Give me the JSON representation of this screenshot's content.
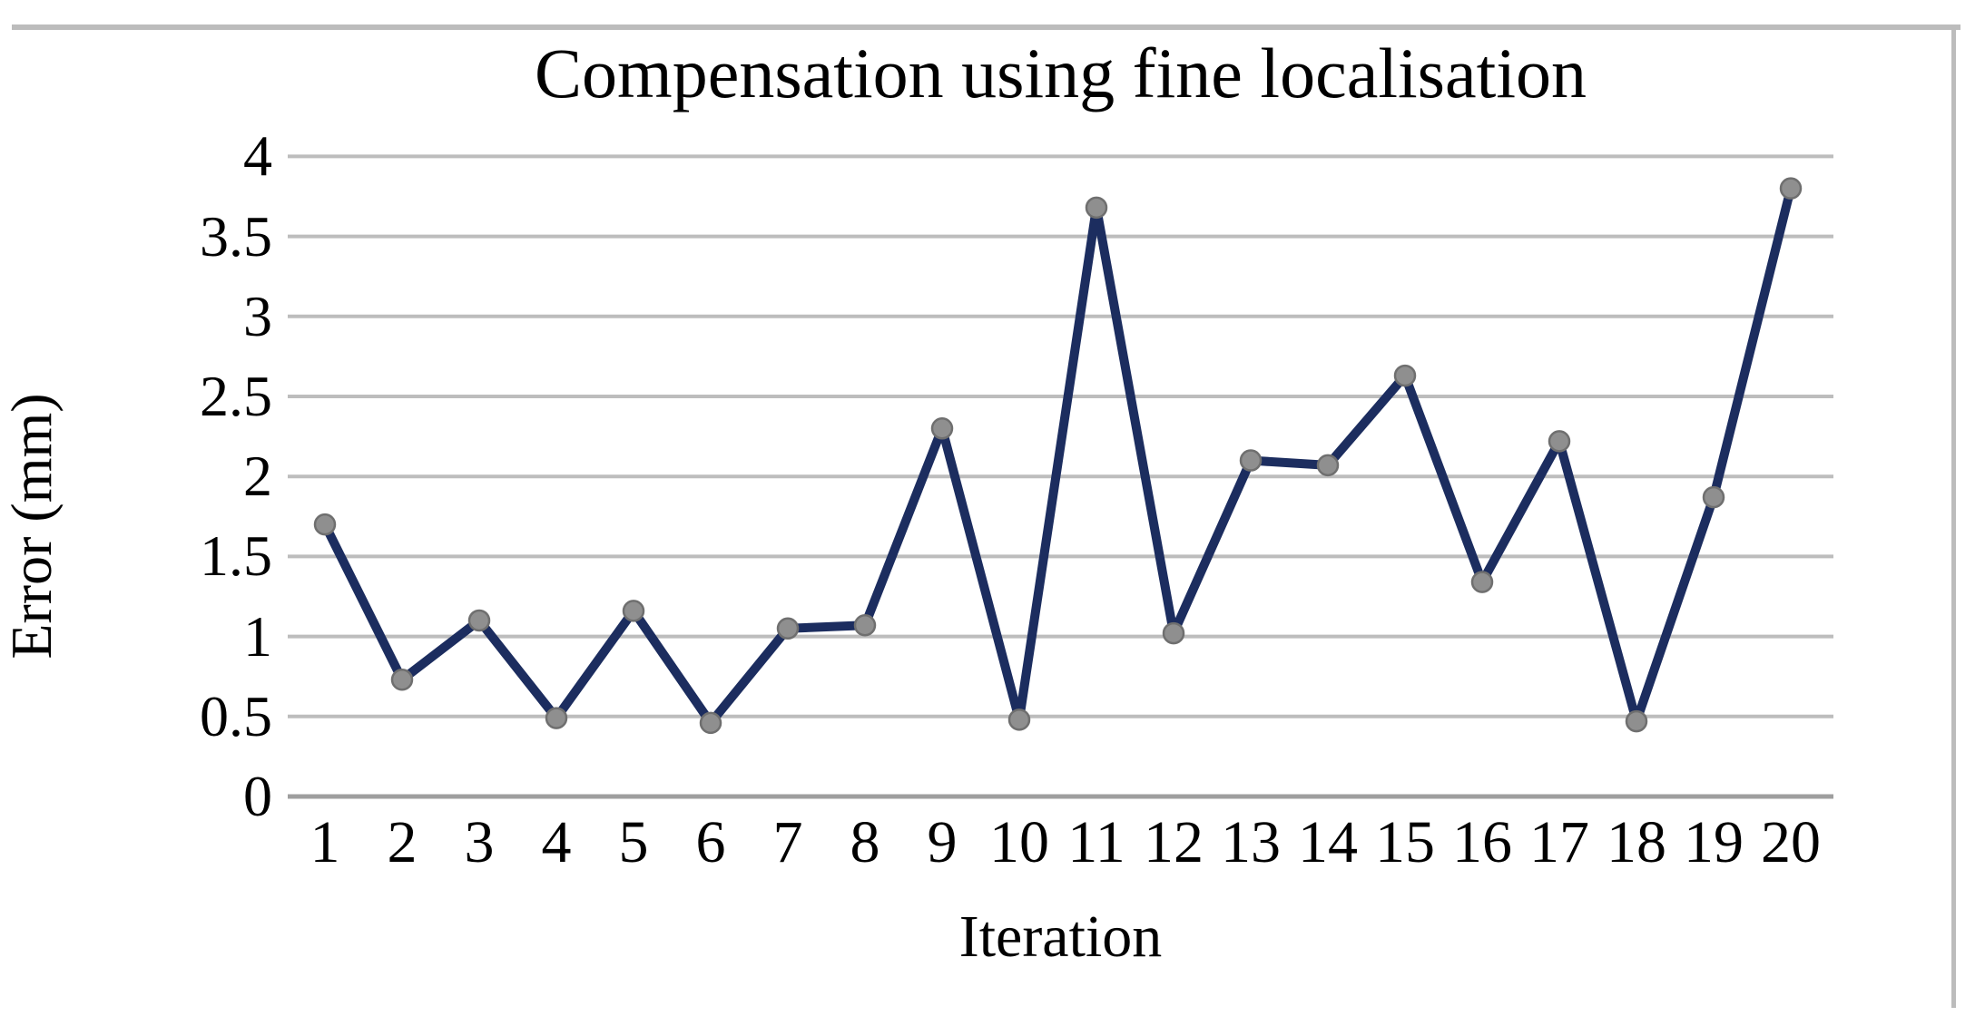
{
  "chart_data": {
    "type": "line",
    "title": "Compensation using fine localisation",
    "xlabel": "Iteration",
    "ylabel": "Error (mm)",
    "categories": [
      1,
      2,
      3,
      4,
      5,
      6,
      7,
      8,
      9,
      10,
      11,
      12,
      13,
      14,
      15,
      16,
      17,
      18,
      19,
      20
    ],
    "series": [
      {
        "name": "Error",
        "values": [
          1.7,
          0.73,
          1.1,
          0.49,
          1.16,
          0.46,
          1.05,
          1.07,
          2.3,
          0.48,
          3.68,
          1.02,
          2.1,
          2.07,
          2.63,
          1.34,
          2.22,
          0.47,
          1.87,
          3.8
        ]
      }
    ],
    "ylim": [
      0,
      4
    ],
    "y_ticks": [
      0,
      0.5,
      1,
      1.5,
      2,
      2.5,
      3,
      3.5,
      4
    ],
    "grid": true,
    "legend_position": "none",
    "colors": {
      "series_line": "#1c2d5f",
      "marker_fill": "#8f8f8f",
      "marker_edge": "#6f6f6f",
      "gridline": "#bdbdbd",
      "axis_line": "#9e9e9e",
      "frame_border": "#bcbcbc",
      "text": "#000000",
      "background": "#ffffff"
    }
  }
}
